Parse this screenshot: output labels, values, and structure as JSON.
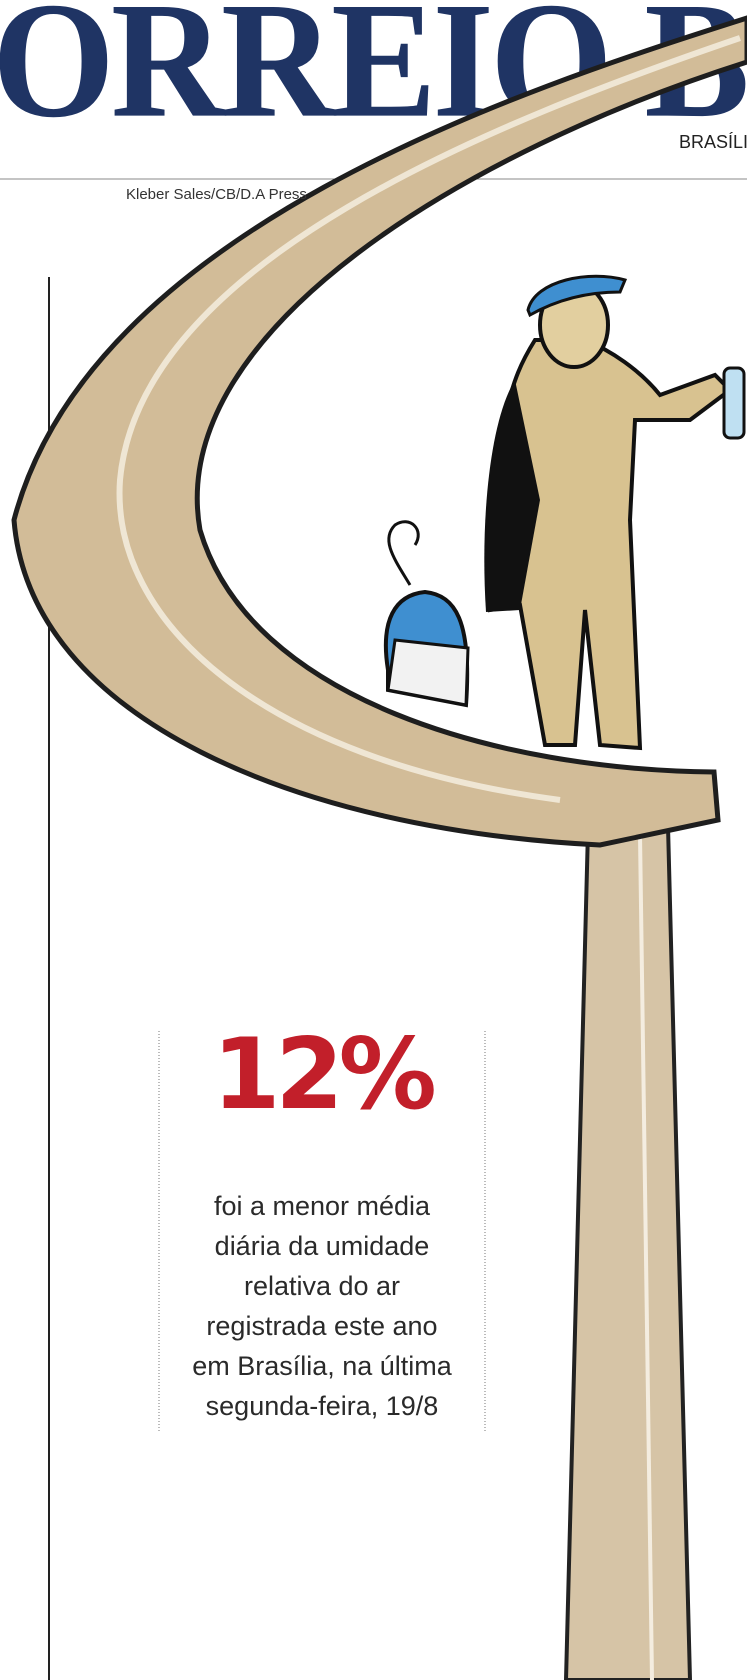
{
  "masthead": {
    "title": "ORREIO B",
    "edition": "BRASÍLIA"
  },
  "photo_credit": "Kleber Sales/CB/D.A Press",
  "highlight": {
    "figure": "12%",
    "description_lines": [
      "foi a menor média",
      "diária da umidade",
      "relativa do ar",
      "registrada este ano",
      "em Brasília, na última",
      "segunda-feira, 19/8"
    ]
  }
}
